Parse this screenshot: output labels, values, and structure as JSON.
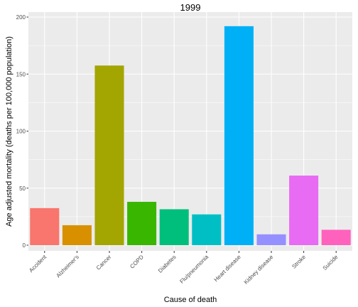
{
  "chart_data": {
    "type": "bar",
    "title": "1999",
    "xlabel": "Cause of death",
    "ylabel": "Age adjusted mortality (deaths per 100,000 population)",
    "ylim": [
      -7.5,
      200
    ],
    "yticks": [
      0,
      50,
      100,
      150,
      200
    ],
    "grid": true,
    "legend": "none",
    "categories": [
      "Accident",
      "Alzheimer's",
      "Cancer",
      "COPD",
      "Diabetes",
      "Flu/pneumonia",
      "Heart disease",
      "Kidney disease",
      "Stroke",
      "Suicide"
    ],
    "values": [
      32.5,
      17.5,
      157.5,
      38,
      31.5,
      27,
      192,
      9.5,
      61,
      13.5
    ],
    "colors": [
      "#F8766D",
      "#D89000",
      "#A3A500",
      "#39B600",
      "#00BF7D",
      "#00BFC4",
      "#00B0F6",
      "#9590FF",
      "#E76BF3",
      "#FF62BC"
    ],
    "panel_background": "#EBEBEB",
    "grid_color": "#FFFFFF"
  }
}
